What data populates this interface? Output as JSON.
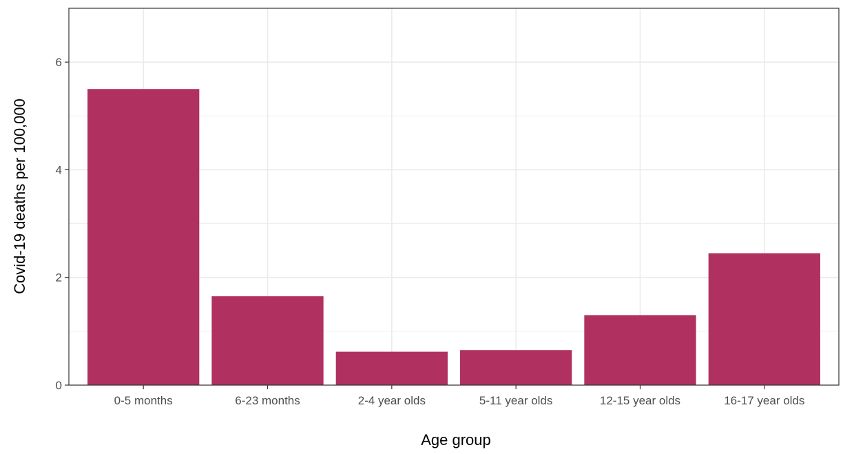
{
  "chart_data": {
    "type": "bar",
    "title": "",
    "xlabel": "Age group",
    "ylabel": "Covid-19 deaths per 100,000",
    "categories": [
      "0-5 months",
      "6-23 months",
      "2-4 year olds",
      "5-11 year olds",
      "12-15 year olds",
      "16-17 year olds"
    ],
    "values": [
      5.5,
      1.65,
      0.62,
      0.65,
      1.3,
      2.45
    ],
    "ylim": [
      0,
      7
    ],
    "yticks": [
      0,
      2,
      4,
      6
    ],
    "ytick_labels": [
      "0",
      "2",
      "4",
      "6"
    ],
    "grid": true,
    "legend": "none",
    "bar_color": "#B03060",
    "grid_color": "#EBEBEB",
    "panel_border_color": "#333333"
  }
}
